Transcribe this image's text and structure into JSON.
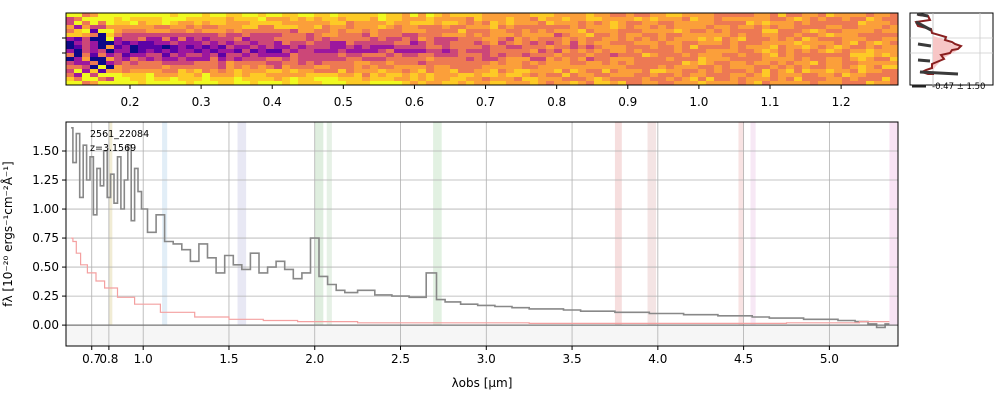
{
  "chart_data": [
    {
      "type": "heatmap",
      "panel": "2d-spectrum",
      "colormap": "plasma",
      "x_ticks": [
        "0.2",
        "0.3",
        "0.4",
        "0.5",
        "0.6",
        "0.7",
        "0.8",
        "0.9",
        "1.0",
        "1.1",
        "1.2"
      ],
      "x_tick_values": [
        0.2,
        0.3,
        0.4,
        0.5,
        0.6,
        0.7,
        0.8,
        0.9,
        1.0,
        1.1,
        1.2
      ],
      "xlim": [
        0.11,
        1.28
      ]
    },
    {
      "type": "line",
      "panel": "spatial-profile",
      "annotation": "-0.47 ± 1.50"
    },
    {
      "type": "line",
      "panel": "1d-spectrum",
      "object_id": "2561_22084",
      "redshift_label": "z=3.1569",
      "xlabel": "λobs [μm]",
      "ylabel": "fλ [10⁻²⁰ ergs⁻¹cm⁻²Å⁻¹]",
      "xlim": [
        0.55,
        5.4
      ],
      "ylim": [
        -0.18,
        1.75
      ],
      "x_ticks": [
        "0.7",
        "0.8",
        "1.0",
        "1.5",
        "2.0",
        "2.5",
        "3.0",
        "3.5",
        "4.0",
        "4.5",
        "5.0"
      ],
      "x_tick_values": [
        0.7,
        0.8,
        1.0,
        1.5,
        2.0,
        2.5,
        3.0,
        3.5,
        4.0,
        4.5,
        5.0
      ],
      "y_ticks": [
        "0.00",
        "0.25",
        "0.50",
        "0.75",
        "1.00",
        "1.25",
        "1.50"
      ],
      "y_tick_values": [
        0.0,
        0.25,
        0.5,
        0.75,
        1.0,
        1.25,
        1.5
      ],
      "grid": true,
      "series": [
        {
          "role": "flux",
          "color": "#888888",
          "x": [
            0.58,
            0.6,
            0.62,
            0.64,
            0.66,
            0.68,
            0.7,
            0.72,
            0.74,
            0.76,
            0.78,
            0.8,
            0.82,
            0.84,
            0.86,
            0.88,
            0.9,
            0.92,
            0.94,
            0.96,
            0.98,
            1.0,
            1.05,
            1.1,
            1.15,
            1.2,
            1.25,
            1.3,
            1.35,
            1.4,
            1.45,
            1.5,
            1.55,
            1.6,
            1.65,
            1.7,
            1.75,
            1.8,
            1.85,
            1.9,
            1.95,
            2.0,
            2.05,
            2.1,
            2.15,
            2.2,
            2.3,
            2.4,
            2.5,
            2.6,
            2.7,
            2.72,
            2.8,
            2.9,
            3.0,
            3.1,
            3.2,
            3.3,
            3.4,
            3.5,
            3.6,
            3.7,
            3.8,
            3.9,
            4.0,
            4.1,
            4.2,
            4.3,
            4.4,
            4.5,
            4.6,
            4.7,
            4.8,
            4.9,
            5.0,
            5.1,
            5.2,
            5.25,
            5.3,
            5.35
          ],
          "y": [
            1.7,
            1.4,
            1.65,
            1.1,
            1.55,
            1.25,
            1.45,
            0.95,
            1.35,
            1.2,
            1.5,
            1.1,
            1.3,
            1.05,
            1.45,
            1.0,
            1.25,
            1.55,
            0.9,
            1.35,
            1.15,
            1.0,
            0.8,
            0.95,
            0.72,
            0.7,
            0.65,
            0.55,
            0.7,
            0.58,
            0.45,
            0.6,
            0.52,
            0.48,
            0.62,
            0.45,
            0.5,
            0.55,
            0.48,
            0.4,
            0.45,
            0.75,
            0.42,
            0.35,
            0.3,
            0.28,
            0.3,
            0.26,
            0.25,
            0.24,
            0.45,
            0.22,
            0.2,
            0.18,
            0.17,
            0.16,
            0.15,
            0.14,
            0.14,
            0.13,
            0.12,
            0.12,
            0.11,
            0.11,
            0.1,
            0.1,
            0.09,
            0.09,
            0.08,
            0.08,
            0.07,
            0.06,
            0.06,
            0.05,
            0.05,
            0.04,
            0.03,
            0.01,
            -0.02,
            0.01
          ]
        },
        {
          "role": "error",
          "color": "#f4a0a0",
          "x": [
            0.58,
            0.6,
            0.62,
            0.65,
            0.7,
            0.75,
            0.8,
            0.9,
            1.0,
            1.2,
            1.4,
            1.6,
            1.8,
            2.0,
            2.5,
            3.0,
            3.5,
            4.0,
            4.5,
            5.0,
            5.35
          ],
          "y": [
            0.75,
            0.72,
            0.62,
            0.52,
            0.45,
            0.38,
            0.32,
            0.24,
            0.18,
            0.11,
            0.07,
            0.05,
            0.04,
            0.03,
            0.02,
            0.02,
            0.015,
            0.015,
            0.015,
            0.02,
            0.03
          ]
        }
      ],
      "shaded_bands": [
        {
          "x": [
            0.8,
            0.82
          ],
          "color": "#e8e0b8"
        },
        {
          "x": [
            1.11,
            1.14
          ],
          "color": "#cfe3f2"
        },
        {
          "x": [
            1.55,
            1.6
          ],
          "color": "#d8d8ec"
        },
        {
          "x": [
            2.0,
            2.05
          ],
          "color": "#c9e2c9"
        },
        {
          "x": [
            2.07,
            2.1
          ],
          "color": "#d6e8d6"
        },
        {
          "x": [
            2.69,
            2.74
          ],
          "color": "#cfe8cf"
        },
        {
          "x": [
            3.75,
            3.79
          ],
          "color": "#f0c8c8"
        },
        {
          "x": [
            3.94,
            3.99
          ],
          "color": "#ecd2d2"
        },
        {
          "x": [
            4.47,
            4.5
          ],
          "color": "#f3d0d0"
        },
        {
          "x": [
            4.54,
            4.57
          ],
          "color": "#f2d8ee"
        },
        {
          "x": [
            5.35,
            5.4
          ],
          "color": "#f3d0ec"
        }
      ]
    }
  ]
}
